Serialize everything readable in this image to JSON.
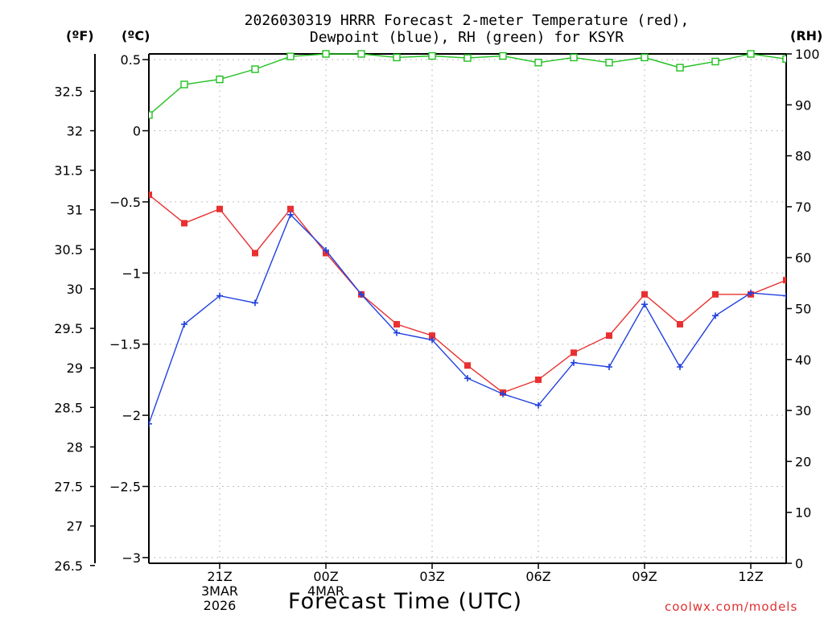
{
  "chart_data": {
    "type": "line",
    "title_line1": "2026030319 HRRR Forecast 2-meter Temperature (red),",
    "title_line2": "Dewpoint (blue), RH (green) for KSYR",
    "units": {
      "fahrenheit": "(ºF)",
      "celsius": "(ºC)",
      "rh": "(RH)"
    },
    "xlabel": "Forecast Time (UTC)",
    "credit": "coolwx.com/models",
    "x_hours": [
      19,
      20,
      21,
      22,
      23,
      24,
      25,
      26,
      27,
      28,
      29,
      30,
      31,
      32,
      33,
      34,
      35,
      36,
      37
    ],
    "xlim": [
      19,
      37
    ],
    "x_ticks": [
      {
        "hour": 21,
        "lines": [
          "21Z",
          "3MAR",
          "2026"
        ]
      },
      {
        "hour": 24,
        "lines": [
          "00Z",
          "4MAR"
        ]
      },
      {
        "hour": 27,
        "lines": [
          "03Z"
        ]
      },
      {
        "hour": 30,
        "lines": [
          "06Z"
        ]
      },
      {
        "hour": 33,
        "lines": [
          "09Z"
        ]
      },
      {
        "hour": 36,
        "lines": [
          "12Z"
        ]
      }
    ],
    "ylim_c": [
      -3.04,
      0.54
    ],
    "ylim_rh": [
      0,
      100
    ],
    "y_ticks_c": [
      "0.5",
      "0",
      "-0.5",
      "-1",
      "-1.5",
      "-2",
      "-2.5",
      "-3"
    ],
    "y_ticks_f": [
      "32.5",
      "32",
      "31.5",
      "31",
      "30.5",
      "30",
      "29.5",
      "29",
      "28.5",
      "28",
      "27.5",
      "27",
      "26.5"
    ],
    "y_ticks_rh": [
      "0",
      "10",
      "20",
      "30",
      "40",
      "50",
      "60",
      "70",
      "80",
      "90",
      "100"
    ],
    "series": [
      {
        "name": "Temperature",
        "unit": "C",
        "color": "#e83030",
        "marker": "square-filled",
        "values": [
          -0.45,
          -0.65,
          -0.55,
          -0.86,
          -0.55,
          -0.86,
          -1.15,
          -1.36,
          -1.44,
          -1.65,
          -1.84,
          -1.75,
          -1.56,
          -1.44,
          -1.15,
          -1.36,
          -1.15,
          -1.15,
          -1.05
        ]
      },
      {
        "name": "Dewpoint",
        "unit": "C",
        "color": "#2040e0",
        "marker": "plus",
        "values": [
          -2.06,
          -1.36,
          -1.16,
          -1.21,
          -0.59,
          -0.84,
          -1.15,
          -1.42,
          -1.47,
          -1.74,
          -1.85,
          -1.93,
          -1.63,
          -1.66,
          -1.22,
          -1.66,
          -1.3,
          -1.14,
          -1.16
        ]
      },
      {
        "name": "RH",
        "unit": "%",
        "color": "#20c020",
        "marker": "square-open",
        "values": [
          88,
          94,
          95,
          97,
          99.5,
          100,
          100,
          99.3,
          99.6,
          99.2,
          99.6,
          98.3,
          99.3,
          98.3,
          99.3,
          97.3,
          98.5,
          100,
          99
        ]
      }
    ]
  }
}
